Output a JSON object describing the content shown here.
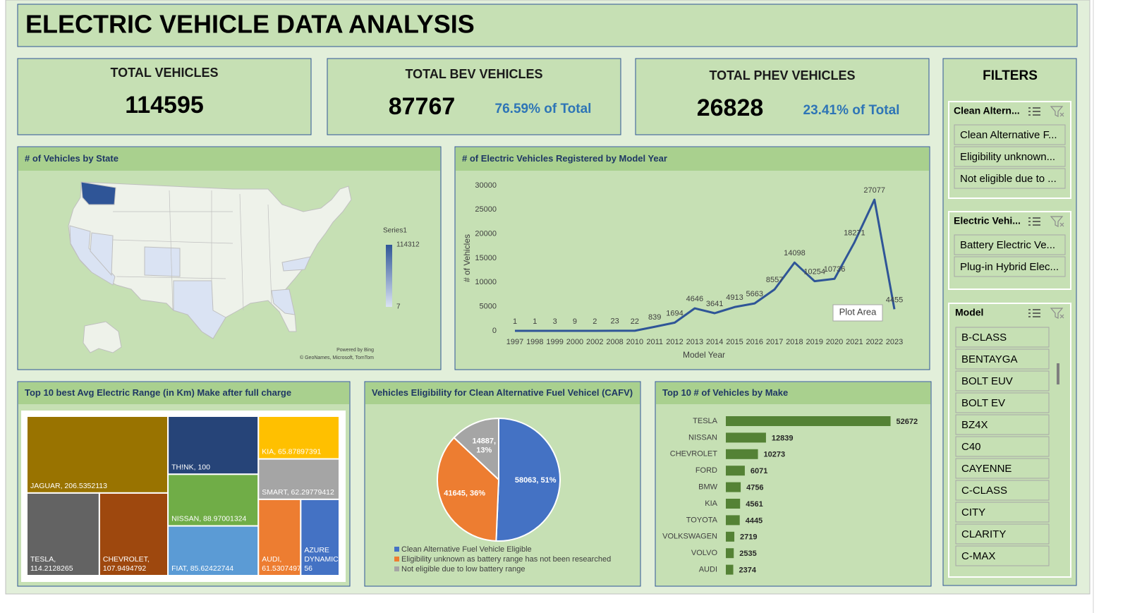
{
  "title": "ELECTRIC VEHICLE DATA ANALYSIS",
  "kpis": [
    {
      "label": "TOTAL VEHICLES",
      "value": 114595
    },
    {
      "label": "TOTAL BEV VEHICLES",
      "value": 87767,
      "share": "76.59% of Total"
    },
    {
      "label": "TOTAL PHEV VEHICLES",
      "value": 26828,
      "share": "23.41% of Total"
    }
  ],
  "chart_data": [
    {
      "type": "map",
      "title": "# of Vehicles by State",
      "legend_title": "Series1",
      "color_range": [
        7,
        114312
      ],
      "colors": [
        "#dae3f3",
        "#2f5597"
      ],
      "attribution": [
        "Powered by Bing",
        "© GeoNames, Microsoft, TomTom"
      ]
    },
    {
      "type": "line",
      "title": "# of Electric Vehicles Registered by Model Year",
      "x_label": "Model Year",
      "y_label": "# of Vehicles",
      "categories": [
        "1997",
        "1998",
        "1999",
        "2000",
        "2002",
        "2008",
        "2010",
        "2011",
        "2012",
        "2013",
        "2014",
        "2015",
        "2016",
        "2017",
        "2018",
        "2019",
        "2020",
        "2021",
        "2022",
        "2023"
      ],
      "values": [
        1,
        1,
        3,
        9,
        2,
        23,
        22,
        839,
        1694,
        4646,
        3641,
        4913,
        5663,
        8557,
        14098,
        10254,
        10736,
        18271,
        27077,
        4455
      ],
      "color": "#2f5597",
      "ylim": [
        0,
        30000
      ],
      "yticks": [
        0,
        5000,
        10000,
        15000,
        20000,
        25000,
        30000
      ],
      "tooltip": "Plot Area"
    },
    {
      "type": "treemap",
      "title": "Top 10 best Avg Electric Range (in Km) Make after full charge",
      "values": [
        206.5352113,
        114.2128265,
        107.9494792,
        100,
        88.97001324,
        85.62422744,
        65.87897391,
        62.29779412,
        61.53074979,
        56
      ],
      "value_labels": [
        "JAGUAR, 206.5352113",
        "TESLA, 114.2128265",
        "CHEVROLET, 107.9494792",
        "TH!NK, 100",
        "NISSAN, 88.97001324",
        "FIAT, 85.62422744",
        "KIA, 65.87897391",
        "SMART, 62.29779412",
        "AUDI, 61.53074979",
        "AZURE DYNAMICS, 56"
      ],
      "colors": [
        "#997300",
        "#636363",
        "#9e480e",
        "#264478",
        "#70ad47",
        "#5b9bd5",
        "#ffc000",
        "#a5a5a5",
        "#ed7d31",
        "#4472c4"
      ]
    },
    {
      "type": "pie",
      "title": "Vehicles Eligibility for Clean Alternative Fuel Vehicel (CAFV)",
      "categories": [
        "Clean Alternative Fuel Vehicle Eligible",
        "Eligibility unknown as battery range has not been researched",
        "Not eligible due to low battery range"
      ],
      "values": [
        58063,
        41645,
        14887
      ],
      "value_labels": [
        "58063, 51%",
        "41645, 36%",
        "14887, 13%"
      ],
      "colors": [
        "#4472c4",
        "#ed7d31",
        "#a5a5a5"
      ]
    },
    {
      "type": "bar",
      "orientation": "horizontal",
      "title": "Top 10 # of Vehicles by Make",
      "categories": [
        "TESLA",
        "NISSAN",
        "CHEVROLET",
        "FORD",
        "BMW",
        "KIA",
        "TOYOTA",
        "VOLKSWAGEN",
        "VOLVO",
        "AUDI"
      ],
      "values": [
        52672,
        12839,
        10273,
        6071,
        4756,
        4561,
        4445,
        2719,
        2535,
        2374
      ],
      "color": "#548235",
      "xlim": [
        0,
        60000
      ]
    }
  ],
  "filters": {
    "title": "FILTERS",
    "slicers": [
      {
        "header": "Clean Altern...",
        "items": [
          "Clean Alternative F...",
          "Eligibility unknown...",
          "Not eligible due to ..."
        ]
      },
      {
        "header": "Electric Vehi...",
        "items": [
          "Battery Electric Ve...",
          "Plug-in Hybrid Elec..."
        ]
      },
      {
        "header": "Model",
        "items": [
          "B-CLASS",
          "BENTAYGA",
          "BOLT EUV",
          "BOLT EV",
          "BZ4X",
          "C40",
          "CAYENNE",
          "C-CLASS",
          "CITY",
          "CLARITY",
          "C-MAX"
        ]
      }
    ]
  }
}
